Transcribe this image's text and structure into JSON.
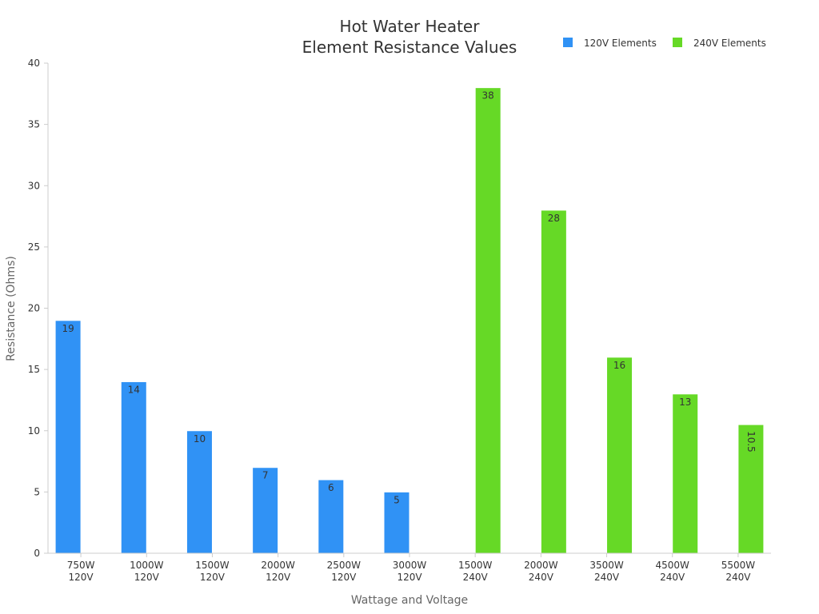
{
  "chart_data": {
    "type": "bar",
    "title_lines": [
      "Hot Water Heater",
      "Element Resistance Values"
    ],
    "xlabel": "Wattage and Voltage",
    "ylabel": "Resistance (Ohms)",
    "ylim": [
      0,
      40
    ],
    "yticks": [
      0,
      5,
      10,
      15,
      20,
      25,
      30,
      35,
      40
    ],
    "legend_position": "top-right",
    "categories": [
      [
        "750W",
        "120V"
      ],
      [
        "1000W",
        "120V"
      ],
      [
        "1500W",
        "120V"
      ],
      [
        "2000W",
        "120V"
      ],
      [
        "2500W",
        "120V"
      ],
      [
        "3000W",
        "120V"
      ],
      [
        "1500W",
        "240V"
      ],
      [
        "2000W",
        "240V"
      ],
      [
        "3500W",
        "240V"
      ],
      [
        "4500W",
        "240V"
      ],
      [
        "5500W",
        "240V"
      ]
    ],
    "series": [
      {
        "name": "120V Elements",
        "color": "#3092f5",
        "values": [
          19,
          14,
          10,
          7,
          6,
          5,
          null,
          null,
          null,
          null,
          null
        ],
        "labels": [
          "19",
          "14",
          "10",
          "7",
          "6",
          "5",
          null,
          null,
          null,
          null,
          null
        ]
      },
      {
        "name": "240V Elements",
        "color": "#66d926",
        "values": [
          null,
          null,
          null,
          null,
          null,
          null,
          38,
          28,
          16,
          13,
          10.5
        ],
        "labels": [
          null,
          null,
          null,
          null,
          null,
          null,
          "38",
          "28",
          "16",
          "13",
          "10.5"
        ]
      }
    ]
  }
}
